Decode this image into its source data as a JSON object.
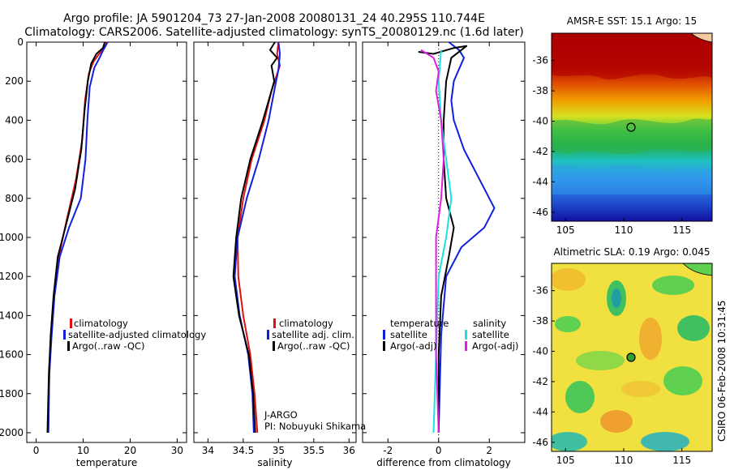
{
  "header": {
    "line1": "Argo profile: JA 5901204_73 27-Jan-2008 20080131_24 40.295S 110.744E",
    "line2": "Climatology: CARS2006. Satellite-adjusted climatology: synTS_20080129.nc (1.6d later)"
  },
  "side_label": "CSIRO 06-Feb-2008 10:31:45",
  "colors": {
    "climatology": "#e01010",
    "satellite": "#1020e0",
    "argo": "#000000",
    "cyan": "#20e0e0",
    "magenta": "#e020e0"
  },
  "chart_data": [
    {
      "id": "temperature",
      "type": "line",
      "xlabel": "temperature",
      "xlim": [
        -2,
        32
      ],
      "ylim": [
        0,
        2050
      ],
      "y_reversed": true,
      "xticks": [
        0,
        10,
        20,
        30
      ],
      "yticks": [
        0,
        200,
        400,
        600,
        800,
        1000,
        1200,
        1400,
        1600,
        1800,
        2000
      ],
      "legend": [
        "climatology",
        "satellite-adjusted climatology",
        "Argo(..raw -QC)"
      ],
      "series": [
        {
          "name": "climatology",
          "color": "#e01010",
          "points": [
            [
              15,
              0
            ],
            [
              14.5,
              30
            ],
            [
              13.4,
              60
            ],
            [
              12.2,
              100
            ],
            [
              11.2,
              160
            ],
            [
              10.4,
              300
            ],
            [
              9.8,
              500
            ],
            [
              8.5,
              700
            ],
            [
              6.6,
              900
            ],
            [
              4.8,
              1100
            ],
            [
              3.8,
              1300
            ],
            [
              3.2,
              1500
            ],
            [
              2.8,
              1700
            ],
            [
              2.5,
              2000
            ]
          ]
        },
        {
          "name": "satellite-adjusted climatology",
          "color": "#1020e0",
          "points": [
            [
              15.2,
              0
            ],
            [
              14.3,
              40
            ],
            [
              13.5,
              80
            ],
            [
              12.4,
              130
            ],
            [
              11.4,
              230
            ],
            [
              10.9,
              400
            ],
            [
              10.5,
              600
            ],
            [
              9.5,
              800
            ],
            [
              7.0,
              950
            ],
            [
              5.0,
              1100
            ],
            [
              3.9,
              1300
            ],
            [
              3.3,
              1500
            ],
            [
              2.8,
              1700
            ],
            [
              2.6,
              2000
            ]
          ]
        },
        {
          "name": "Argo(..raw -QC)",
          "color": "#000000",
          "points": [
            [
              14.6,
              0
            ],
            [
              14.2,
              30
            ],
            [
              12.8,
              60
            ],
            [
              11.7,
              110
            ],
            [
              11.0,
              200
            ],
            [
              10.3,
              350
            ],
            [
              9.6,
              550
            ],
            [
              8.3,
              750
            ],
            [
              6.2,
              950
            ],
            [
              4.6,
              1100
            ],
            [
              3.7,
              1300
            ],
            [
              3.1,
              1500
            ],
            [
              2.7,
              1700
            ],
            [
              2.4,
              2000
            ]
          ]
        }
      ]
    },
    {
      "id": "salinity",
      "type": "line",
      "xlabel": "salinity",
      "xlim": [
        33.8,
        36.1
      ],
      "ylim": [
        0,
        2050
      ],
      "y_reversed": true,
      "xticks": [
        34,
        34.5,
        35,
        35.5,
        36
      ],
      "xticklabels": [
        "34",
        "34.5",
        "35",
        "35.5",
        "36"
      ],
      "yticks": [
        0,
        200,
        400,
        600,
        800,
        1000,
        1200,
        1400,
        1600,
        1800,
        2000
      ],
      "legend": [
        "climatology",
        "satellite adj. clim.",
        "Argo(..raw -QC)"
      ],
      "annotations": [
        "J-ARGO",
        "PI: Nobuyuki Shikama"
      ],
      "series": [
        {
          "name": "climatology",
          "color": "#e01010",
          "points": [
            [
              35.0,
              0
            ],
            [
              34.98,
              60
            ],
            [
              35.02,
              120
            ],
            [
              34.9,
              250
            ],
            [
              34.8,
              400
            ],
            [
              34.62,
              600
            ],
            [
              34.5,
              800
            ],
            [
              34.42,
              1000
            ],
            [
              34.43,
              1200
            ],
            [
              34.5,
              1400
            ],
            [
              34.6,
              1600
            ],
            [
              34.66,
              1800
            ],
            [
              34.7,
              2000
            ]
          ]
        },
        {
          "name": "satellite adj. clim.",
          "color": "#1020e0",
          "points": [
            [
              35.0,
              0
            ],
            [
              35.02,
              60
            ],
            [
              35.0,
              140
            ],
            [
              34.94,
              250
            ],
            [
              34.86,
              400
            ],
            [
              34.72,
              600
            ],
            [
              34.55,
              800
            ],
            [
              34.42,
              1000
            ],
            [
              34.38,
              1200
            ],
            [
              34.45,
              1400
            ],
            [
              34.57,
              1600
            ],
            [
              34.63,
              1800
            ],
            [
              34.65,
              2000
            ]
          ]
        },
        {
          "name": "Argo(..raw -QC)",
          "color": "#000000",
          "points": [
            [
              34.95,
              0
            ],
            [
              34.88,
              40
            ],
            [
              34.98,
              80
            ],
            [
              34.9,
              120
            ],
            [
              34.94,
              200
            ],
            [
              34.86,
              300
            ],
            [
              34.78,
              400
            ],
            [
              34.6,
              600
            ],
            [
              34.47,
              800
            ],
            [
              34.4,
              1000
            ],
            [
              34.36,
              1200
            ],
            [
              34.44,
              1400
            ],
            [
              34.58,
              1600
            ],
            [
              34.64,
              1800
            ],
            [
              34.67,
              2000
            ]
          ]
        }
      ]
    },
    {
      "id": "difference",
      "type": "line",
      "xlabel": "difference from climatology",
      "xlim": [
        -3,
        3.4
      ],
      "ylim": [
        0,
        2050
      ],
      "y_reversed": true,
      "xticks": [
        -2,
        0,
        2
      ],
      "yticks": [
        0,
        200,
        400,
        600,
        800,
        1000,
        1200,
        1400,
        1600,
        1800,
        2000
      ],
      "legend_titles": [
        "temperature",
        "salinity"
      ],
      "legend": [
        "satellite",
        "Argo(-adj)",
        "satellite",
        "Argo(-adj)"
      ],
      "series": [
        {
          "name": "satellite",
          "color": "#1020e0",
          "points": [
            [
              0.4,
              0
            ],
            [
              0.8,
              40
            ],
            [
              1.0,
              80
            ],
            [
              0.6,
              200
            ],
            [
              0.5,
              300
            ],
            [
              0.6,
              400
            ],
            [
              1.0,
              550
            ],
            [
              1.6,
              700
            ],
            [
              2.2,
              850
            ],
            [
              1.8,
              950
            ],
            [
              0.9,
              1050
            ],
            [
              0.3,
              1200
            ],
            [
              0.1,
              1500
            ],
            [
              0.0,
              2000
            ]
          ]
        },
        {
          "name": "Argo(-adj)",
          "color": "#000000",
          "points": [
            [
              -0.8,
              50
            ],
            [
              -0.2,
              60
            ],
            [
              0.6,
              30
            ],
            [
              1.1,
              20
            ],
            [
              0.5,
              80
            ],
            [
              0.3,
              200
            ],
            [
              0.2,
              400
            ],
            [
              0.2,
              600
            ],
            [
              0.3,
              800
            ],
            [
              0.6,
              950
            ],
            [
              0.4,
              1100
            ],
            [
              0.1,
              1300
            ],
            [
              0.0,
              1600
            ],
            [
              0.0,
              2000
            ]
          ]
        },
        {
          "name": "satellite",
          "color": "#20e0e0",
          "points": [
            [
              0.1,
              40
            ],
            [
              0.0,
              200
            ],
            [
              0.1,
              400
            ],
            [
              0.3,
              600
            ],
            [
              0.5,
              800
            ],
            [
              0.3,
              1000
            ],
            [
              0.0,
              1200
            ],
            [
              -0.1,
              1600
            ],
            [
              -0.2,
              2000
            ]
          ]
        },
        {
          "name": "Argo(-adj)",
          "color": "#e020e0",
          "points": [
            [
              -0.7,
              40
            ],
            [
              -0.2,
              80
            ],
            [
              0.0,
              150
            ],
            [
              -0.1,
              250
            ],
            [
              0.1,
              400
            ],
            [
              0.2,
              600
            ],
            [
              0.1,
              800
            ],
            [
              -0.1,
              1000
            ],
            [
              -0.1,
              1200
            ],
            [
              -0.1,
              1600
            ],
            [
              0.0,
              2000
            ]
          ]
        }
      ]
    }
  ],
  "maps": [
    {
      "id": "sst",
      "title": "AMSR-E SST: 15.1  Argo: 15",
      "xticks": [
        105,
        110,
        115
      ],
      "yticks": [
        -36,
        -38,
        -40,
        -42,
        -44,
        -46
      ],
      "lon_range": [
        103.8,
        117.6
      ],
      "lat_range": [
        -34.2,
        -46.6
      ],
      "marker": [
        110.744,
        -40.295
      ]
    },
    {
      "id": "sla",
      "title": "Altimetric SLA: 0.19  Argo: 0.045",
      "xticks": [
        105,
        110,
        115
      ],
      "yticks": [
        -36,
        -38,
        -40,
        -42,
        -44,
        -46
      ],
      "lon_range": [
        103.8,
        117.6
      ],
      "lat_range": [
        -34.2,
        -46.6
      ],
      "marker": [
        110.744,
        -40.295
      ]
    }
  ]
}
